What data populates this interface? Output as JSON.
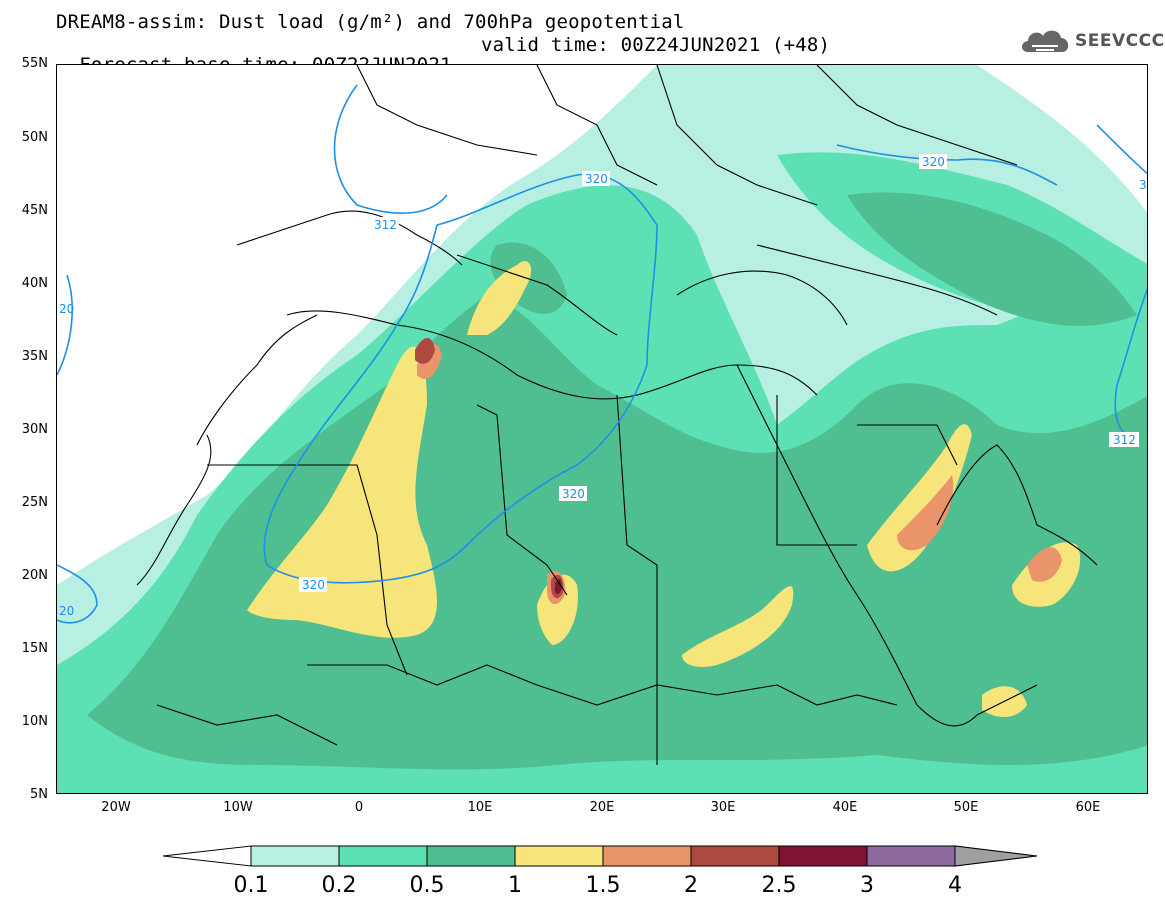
{
  "header": {
    "title_line1": "DREAM8-assim: Dust load (g/m²) and 700hPa geopotential",
    "base_time": "Forecast base time: 00Z22JUN2021",
    "valid_time": "valid time: 00Z24JUN2021 (+48)"
  },
  "logo": {
    "text": "SEEVCCC",
    "icon": "cloud-logo-icon"
  },
  "map": {
    "lat_labels": [
      "55N",
      "50N",
      "45N",
      "40N",
      "35N",
      "30N",
      "25N",
      "20N",
      "15N",
      "10N",
      "5N"
    ],
    "lon_labels": [
      "20W",
      "10W",
      "0",
      "10E",
      "20E",
      "30E",
      "40E",
      "50E",
      "60E"
    ],
    "contour_labels": [
      "312",
      "320",
      "320",
      "320",
      "320",
      "312",
      "20",
      "20",
      "3"
    ],
    "contour_color": "#1e90e6",
    "border_color": "#000000"
  },
  "colorbar": {
    "levels": [
      "0.1",
      "0.2",
      "0.5",
      "1",
      "1.5",
      "2",
      "2.5",
      "3",
      "4"
    ],
    "colors": [
      "#ffffff",
      "#b7efe2",
      "#5ee0b5",
      "#4fbf91",
      "#f5e57a",
      "#e9946a",
      "#ad4a40",
      "#7e1431",
      "#8c6aa0",
      "#a0a0a0"
    ]
  }
}
